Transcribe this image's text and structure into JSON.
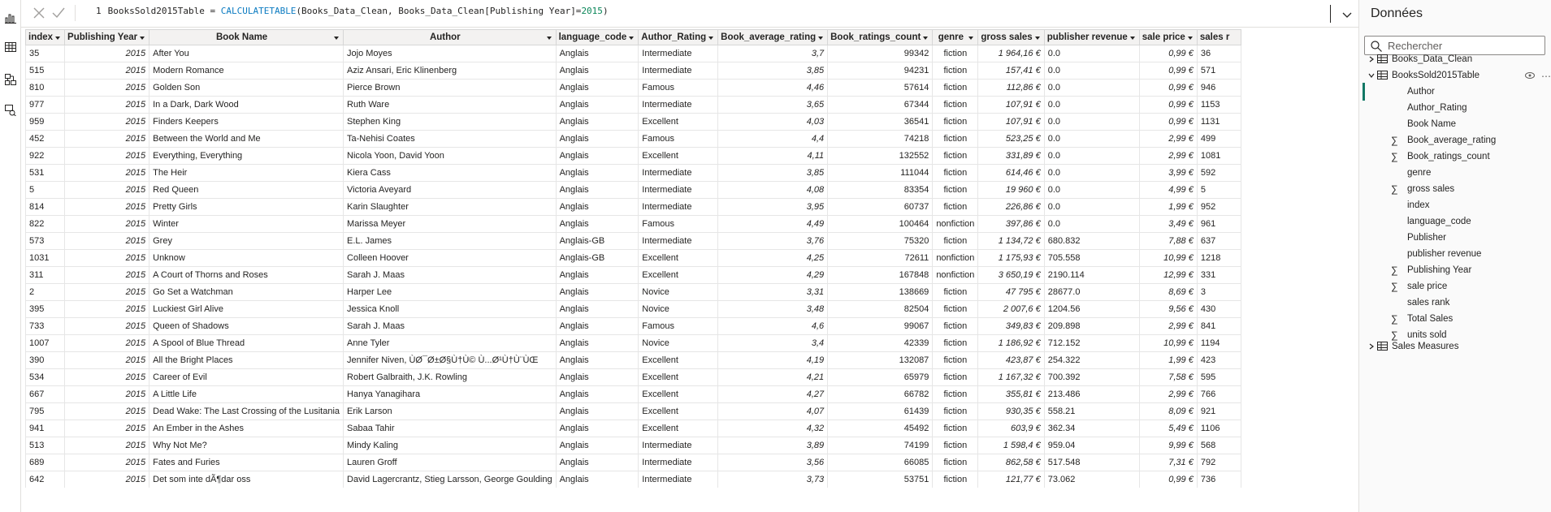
{
  "formula": {
    "line_number": "1",
    "table_name": "BooksSold2015Table",
    "equals": " = ",
    "function": "CALCULATETABLE",
    "args_pre": "(Books_Data_Clean, Books_Data_Clean[Publishing Year]=",
    "arg_value": "2015",
    "args_post": ")"
  },
  "table": {
    "columns": [
      "index",
      "Publishing Year",
      "Book Name",
      "Author",
      "language_code",
      "Author_Rating",
      "Book_average_rating",
      "Book_ratings_count",
      "genre",
      "gross sales",
      "publisher revenue",
      "sale price",
      "sales r"
    ],
    "rows": [
      [
        "35",
        "2015",
        "After You",
        "Jojo Moyes",
        "Anglais",
        "Intermediate",
        "3,7",
        "99342",
        "fiction",
        "1 964,16 €",
        "0.0",
        "0,99 €",
        "36"
      ],
      [
        "515",
        "2015",
        "Modern Romance",
        "Aziz Ansari, Eric Klinenberg",
        "Anglais",
        "Intermediate",
        "3,85",
        "94231",
        "fiction",
        "157,41 €",
        "0.0",
        "0,99 €",
        "571"
      ],
      [
        "810",
        "2015",
        "Golden Son",
        "Pierce Brown",
        "Anglais",
        "Famous",
        "4,46",
        "57614",
        "fiction",
        "112,86 €",
        "0.0",
        "0,99 €",
        "946"
      ],
      [
        "977",
        "2015",
        "In a Dark, Dark Wood",
        "Ruth Ware",
        "Anglais",
        "Intermediate",
        "3,65",
        "67344",
        "fiction",
        "107,91 €",
        "0.0",
        "0,99 €",
        "1153"
      ],
      [
        "959",
        "2015",
        "Finders Keepers",
        "Stephen King",
        "Anglais",
        "Excellent",
        "4,03",
        "36541",
        "fiction",
        "107,91 €",
        "0.0",
        "0,99 €",
        "1131"
      ],
      [
        "452",
        "2015",
        "Between the World and Me",
        "Ta-Nehisi Coates",
        "Anglais",
        "Famous",
        "4,4",
        "74218",
        "fiction",
        "523,25 €",
        "0.0",
        "2,99 €",
        "499"
      ],
      [
        "922",
        "2015",
        "Everything, Everything",
        "Nicola Yoon, David Yoon",
        "Anglais",
        "Excellent",
        "4,11",
        "132552",
        "fiction",
        "331,89 €",
        "0.0",
        "2,99 €",
        "1081"
      ],
      [
        "531",
        "2015",
        "The Heir",
        "Kiera Cass",
        "Anglais",
        "Intermediate",
        "3,85",
        "111044",
        "fiction",
        "614,46 €",
        "0.0",
        "3,99 €",
        "592"
      ],
      [
        "5",
        "2015",
        "Red Queen",
        "Victoria Aveyard",
        "Anglais",
        "Intermediate",
        "4,08",
        "83354",
        "fiction",
        "19 960 €",
        "0.0",
        "4,99 €",
        "5"
      ],
      [
        "814",
        "2015",
        "Pretty Girls",
        "Karin Slaughter",
        "Anglais",
        "Intermediate",
        "3,95",
        "60737",
        "fiction",
        "226,86 €",
        "0.0",
        "1,99 €",
        "952"
      ],
      [
        "822",
        "2015",
        "Winter",
        "Marissa Meyer",
        "Anglais",
        "Famous",
        "4,49",
        "100464",
        "nonfiction",
        "397,86 €",
        "0.0",
        "3,49 €",
        "961"
      ],
      [
        "573",
        "2015",
        "Grey",
        "E.L. James",
        "Anglais-GB",
        "Intermediate",
        "3,76",
        "75320",
        "fiction",
        "1 134,72 €",
        "680.832",
        "7,88 €",
        "637"
      ],
      [
        "1031",
        "2015",
        "Unknow",
        "Colleen Hoover",
        "Anglais-GB",
        "Excellent",
        "4,25",
        "72611",
        "nonfiction",
        "1 175,93 €",
        "705.558",
        "10,99 €",
        "1218"
      ],
      [
        "311",
        "2015",
        "A Court of Thorns and Roses",
        "Sarah J. Maas",
        "Anglais",
        "Excellent",
        "4,29",
        "167848",
        "nonfiction",
        "3 650,19 €",
        "2190.114",
        "12,99 €",
        "331"
      ],
      [
        "2",
        "2015",
        "Go Set a Watchman",
        "Harper Lee",
        "Anglais",
        "Novice",
        "3,31",
        "138669",
        "fiction",
        "47 795 €",
        "28677.0",
        "8,69 €",
        "3"
      ],
      [
        "395",
        "2015",
        "Luckiest Girl Alive",
        "Jessica Knoll",
        "Anglais",
        "Novice",
        "3,48",
        "82504",
        "fiction",
        "2 007,6 €",
        "1204.56",
        "9,56 €",
        "430"
      ],
      [
        "733",
        "2015",
        "Queen of Shadows",
        "Sarah J. Maas",
        "Anglais",
        "Famous",
        "4,6",
        "99067",
        "fiction",
        "349,83 €",
        "209.898",
        "2,99 €",
        "841"
      ],
      [
        "1007",
        "2015",
        "A Spool of Blue Thread",
        "Anne Tyler",
        "Anglais",
        "Novice",
        "3,4",
        "42339",
        "fiction",
        "1 186,92 €",
        "712.152",
        "10,99 €",
        "1194"
      ],
      [
        "390",
        "2015",
        "All the Bright Places",
        "Jennifer Niven, ÙØ¯Ø±Ø§Ù†Ù© Ù...Ø¹Ù†Ù¨ÙŒ",
        "Anglais",
        "Excellent",
        "4,19",
        "132087",
        "fiction",
        "423,87 €",
        "254.322",
        "1,99 €",
        "423"
      ],
      [
        "534",
        "2015",
        "Career of Evil",
        "Robert Galbraith, J.K. Rowling",
        "Anglais",
        "Excellent",
        "4,21",
        "65979",
        "fiction",
        "1 167,32 €",
        "700.392",
        "7,58 €",
        "595"
      ],
      [
        "667",
        "2015",
        "A Little Life",
        "Hanya Yanagihara",
        "Anglais",
        "Excellent",
        "4,27",
        "66782",
        "fiction",
        "355,81 €",
        "213.486",
        "2,99 €",
        "766"
      ],
      [
        "795",
        "2015",
        "Dead Wake: The Last Crossing of the Lusitania",
        "Erik Larson",
        "Anglais",
        "Excellent",
        "4,07",
        "61439",
        "fiction",
        "930,35 €",
        "558.21",
        "8,09 €",
        "921"
      ],
      [
        "941",
        "2015",
        "An Ember in the Ashes",
        "Sabaa Tahir",
        "Anglais",
        "Excellent",
        "4,32",
        "45492",
        "fiction",
        "603,9 €",
        "362.34",
        "5,49 €",
        "1106"
      ],
      [
        "513",
        "2015",
        "Why Not Me?",
        "Mindy Kaling",
        "Anglais",
        "Intermediate",
        "3,89",
        "74199",
        "fiction",
        "1 598,4 €",
        "959.04",
        "9,99 €",
        "568"
      ],
      [
        "689",
        "2015",
        "Fates and Furies",
        "Lauren Groff",
        "Anglais",
        "Intermediate",
        "3,56",
        "66085",
        "fiction",
        "862,58 €",
        "517.548",
        "7,31 €",
        "792"
      ],
      [
        "642",
        "2015",
        "Det som inte dÃ¶dar oss",
        "David Lagercrantz, Stieg Larsson, George Goulding",
        "Anglais",
        "Intermediate",
        "3,73",
        "53751",
        "fiction",
        "121,77 €",
        "73.062",
        "0,99 €",
        "736"
      ]
    ]
  },
  "panel": {
    "title": "Données",
    "search_placeholder": "Rechercher",
    "tables": [
      {
        "name": "Books_Data_Clean",
        "expanded": false
      },
      {
        "name": "BooksSold2015Table",
        "expanded": true
      },
      {
        "name": "Sales Measures",
        "expanded": false
      }
    ],
    "fields": [
      {
        "name": "Author",
        "sigma": false
      },
      {
        "name": "Author_Rating",
        "sigma": false
      },
      {
        "name": "Book Name",
        "sigma": false
      },
      {
        "name": "Book_average_rating",
        "sigma": true
      },
      {
        "name": "Book_ratings_count",
        "sigma": true
      },
      {
        "name": "genre",
        "sigma": false
      },
      {
        "name": "gross sales",
        "sigma": true
      },
      {
        "name": "index",
        "sigma": false
      },
      {
        "name": "language_code",
        "sigma": false
      },
      {
        "name": "Publisher",
        "sigma": false
      },
      {
        "name": "publisher revenue",
        "sigma": false
      },
      {
        "name": "Publishing Year",
        "sigma": true
      },
      {
        "name": "sale price",
        "sigma": true
      },
      {
        "name": "sales rank",
        "sigma": false
      },
      {
        "name": "Total Sales",
        "sigma": true
      },
      {
        "name": "units sold",
        "sigma": true
      }
    ]
  },
  "colors": {
    "accent": "#117865",
    "function": "#0b7bc1",
    "number": "#098658"
  },
  "icons": [
    "report-view-icon",
    "table-view-icon",
    "model-view-icon",
    "dax-query-icon",
    "cancel-icon",
    "commit-icon",
    "expand-formula-icon",
    "search-icon",
    "table-icon",
    "calculated-table-icon",
    "chevron-right-icon",
    "chevron-down-icon",
    "eye-icon",
    "more-options-icon",
    "sigma-icon",
    "column-dropdown-icon"
  ]
}
